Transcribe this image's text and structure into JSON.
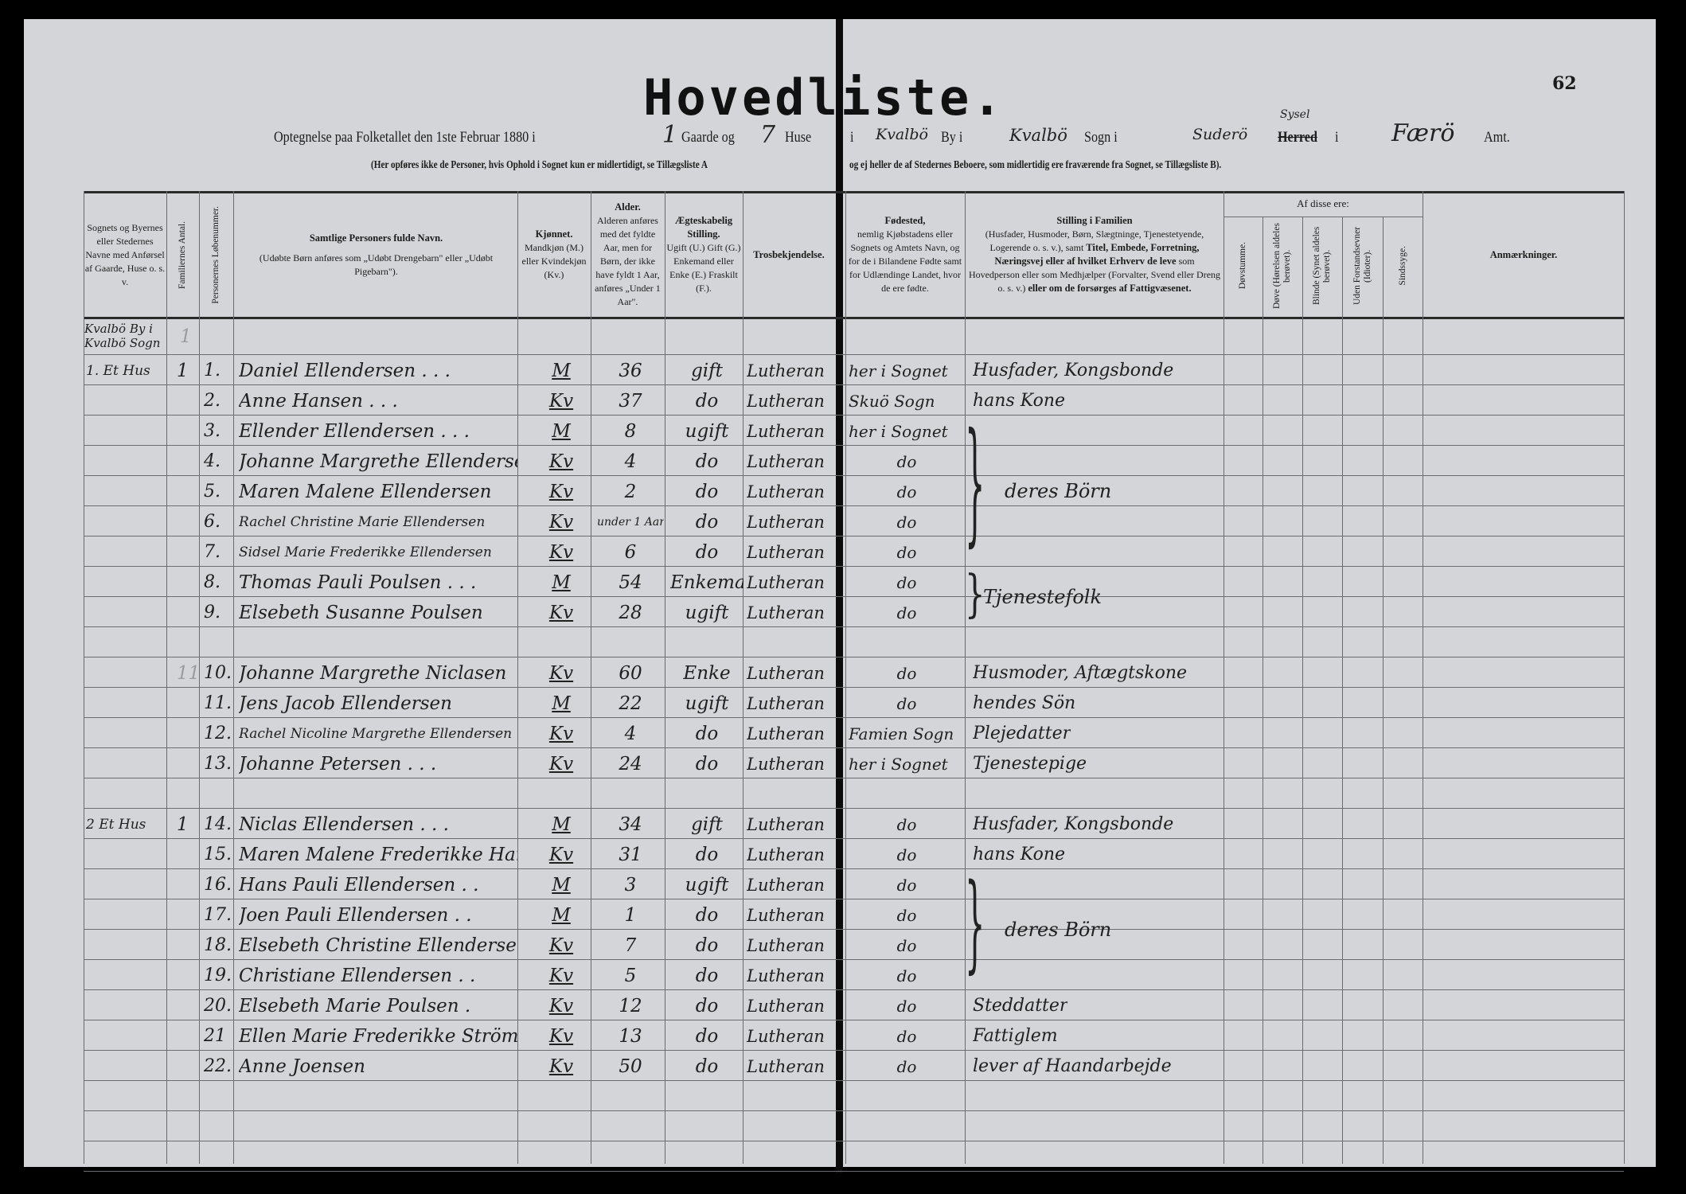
{
  "title": "Hovedliste.",
  "page_number": "62",
  "subtitle": {
    "intro": "Optegnelse paa Folketallet den 1ste Februar 1880 i",
    "gaarde_count": "1",
    "gaarde_label": "Gaarde og",
    "huse_count": "7",
    "huse_label": "Huse",
    "i1": "i",
    "by_name": "Kvalbö",
    "by_label": "By i",
    "sogn_name": "Kvalbö",
    "sogn_label": "Sogn i",
    "herred_name": "Suderö",
    "herred_correction": "Sysel",
    "herred_label": "Herred",
    "i2": "i",
    "amt_name": "Færö",
    "amt_label": "Amt."
  },
  "note_left": "(Her opføres ikke de Personer, hvis Ophold i Sognet kun er midlertidigt, se Tillægsliste A",
  "note_right": "og ej heller de af Stedernes Beboere, som midlertidig ere fraværende fra Sognet, se Tillægsliste B).",
  "headers": {
    "place": "Sognets og Byernes eller Stedernes Navne med Anførsel af Gaarde, Huse o. s. v.",
    "families": "Familiernes Antal.",
    "person_no": "Personernes Løbenummer.",
    "name_title": "Samtlige Personers fulde Navn.",
    "name_note": "(Udøbte Børn anføres som „Udøbt Drengebarn\" eller „Udøbt Pigebarn\").",
    "sex_title": "Kjønnet.",
    "sex_note": "Mandkjøn (M.) eller Kvindekjøn (Kv.)",
    "age_title": "Alder.",
    "age_note": "Alderen anføres med det fyldte Aar, men for Børn, der ikke have fyldt 1 Aar, anføres „Under 1 Aar\".",
    "civil_title": "Ægteskabelig Stilling.",
    "civil_note": "Ugift (U.) Gift (G.) Enkemand eller Enke (E.) Fraskilt (F.).",
    "religion": "Trosbekjendelse.",
    "birth_title": "Fødested,",
    "birth_note": "nemlig Kjøbstadens eller Sognets og Amtets Navn, og for de i Bilandene Fødte samt for Udlændinge Landet, hvor de ere fødte.",
    "position_title": "Stilling i Familien",
    "position_note1": "(Husfader, Husmoder, Børn, Slægtninge, Tjenestetyende, Logerende o. s. v.), samt",
    "position_bold": "Titel, Embede, Forretning, Næringsvej eller af hvilket Erhverv de leve",
    "position_note2": "som Hovedperson eller som Medhjælper (Forvalter, Svend eller Dreng o. s. v.)",
    "position_bold2": "eller om de forsørges af Fattigvæsenet.",
    "of_these": "Af disse ere:",
    "deaf_mute": "Døvstumme.",
    "deaf": "Døve (Hørelsen aldeles berøvet).",
    "blind": "Blinde (Synet aldeles berøvet).",
    "idiots": "Uden Forstandsevner (Idioter).",
    "insane": "Sindssyge.",
    "remarks": "Anmærkninger."
  },
  "location_header": {
    "line1": "Kvalbö By i",
    "line2": "Kvalbö Sogn",
    "families": "1"
  },
  "rows": [
    {
      "place": "1. Et Hus",
      "fam": "1",
      "nr": "1.",
      "name": "Daniel Ellendersen . . .",
      "sex": "M",
      "age": "36",
      "civil": "gift",
      "religion": "Lutheran",
      "birth": "her i Sognet",
      "position": "Husfader, Kongsbonde"
    },
    {
      "nr": "2.",
      "name": "Anne Hansen . . .",
      "sex": "Kv",
      "age": "37",
      "civil": "do",
      "religion": "Lutheran",
      "birth": "Skuö Sogn",
      "position": "hans Kone"
    },
    {
      "nr": "3.",
      "name": "Ellender Ellendersen . . .",
      "sex": "M",
      "age": "8",
      "civil": "ugift",
      "religion": "Lutheran",
      "birth": "her i Sognet"
    },
    {
      "nr": "4.",
      "name": "Johanne Margrethe Ellendersen",
      "sex": "Kv",
      "age": "4",
      "civil": "do",
      "religion": "Lutheran",
      "birth": "do"
    },
    {
      "nr": "5.",
      "name": "Maren Malene Ellendersen",
      "sex": "Kv",
      "age": "2",
      "civil": "do",
      "religion": "Lutheran",
      "birth": "do"
    },
    {
      "nr": "6.",
      "name": "Rachel Christine Marie Ellendersen",
      "sex": "Kv",
      "age": "under 1 Aar",
      "civil": "do",
      "religion": "Lutheran",
      "birth": "do"
    },
    {
      "nr": "7.",
      "name": "Sidsel Marie Frederikke Ellendersen",
      "sex": "Kv",
      "age": "6",
      "civil": "do",
      "religion": "Lutheran",
      "birth": "do"
    },
    {
      "nr": "8.",
      "name": "Thomas Pauli Poulsen . . .",
      "sex": "M",
      "age": "54",
      "civil": "Enkemand",
      "religion": "Lutheran",
      "birth": "do"
    },
    {
      "nr": "9.",
      "name": "Elsebeth Susanne Poulsen",
      "sex": "Kv",
      "age": "28",
      "civil": "ugift",
      "religion": "Lutheran",
      "birth": "do"
    },
    {},
    {
      "fam": "11",
      "nr": "10.",
      "name": "Johanne Margrethe Niclasen",
      "sex": "Kv",
      "age": "60",
      "civil": "Enke",
      "religion": "Lutheran",
      "birth": "do",
      "position": "Husmoder, Aftægtskone"
    },
    {
      "nr": "11.",
      "name": "Jens Jacob Ellendersen",
      "sex": "M",
      "age": "22",
      "civil": "ugift",
      "religion": "Lutheran",
      "birth": "do",
      "position": "hendes Sön"
    },
    {
      "nr": "12.",
      "name": "Rachel Nicoline Margrethe Ellendersen",
      "sex": "Kv",
      "age": "4",
      "civil": "do",
      "religion": "Lutheran",
      "birth": "Famien Sogn",
      "position": "Plejedatter"
    },
    {
      "nr": "13.",
      "name": "Johanne Petersen . . .",
      "sex": "Kv",
      "age": "24",
      "civil": "do",
      "religion": "Lutheran",
      "birth": "her i Sognet",
      "position": "Tjenestepige"
    },
    {},
    {
      "place": "2 Et Hus",
      "fam": "1",
      "nr": "14.",
      "name": "Niclas Ellendersen . . .",
      "sex": "M",
      "age": "34",
      "civil": "gift",
      "religion": "Lutheran",
      "birth": "do",
      "position": "Husfader, Kongsbonde"
    },
    {
      "nr": "15.",
      "name": "Maren Malene Frederikke Hammer",
      "sex": "Kv",
      "age": "31",
      "civil": "do",
      "religion": "Lutheran",
      "birth": "do",
      "position": "hans Kone"
    },
    {
      "nr": "16.",
      "name": "Hans Pauli Ellendersen . .",
      "sex": "M",
      "age": "3",
      "civil": "ugift",
      "religion": "Lutheran",
      "birth": "do"
    },
    {
      "nr": "17.",
      "name": "Joen Pauli Ellendersen . .",
      "sex": "M",
      "age": "1",
      "civil": "do",
      "religion": "Lutheran",
      "birth": "do"
    },
    {
      "nr": "18.",
      "name": "Elsebeth Christine Ellendersen",
      "sex": "Kv",
      "age": "7",
      "civil": "do",
      "religion": "Lutheran",
      "birth": "do"
    },
    {
      "nr": "19.",
      "name": "Christiane Ellendersen . .",
      "sex": "Kv",
      "age": "5",
      "civil": "do",
      "religion": "Lutheran",
      "birth": "do"
    },
    {
      "nr": "20.",
      "name": "Elsebeth Marie Poulsen .",
      "sex": "Kv",
      "age": "12",
      "civil": "do",
      "religion": "Lutheran",
      "birth": "do",
      "position": "Steddatter"
    },
    {
      "nr": "21",
      "name": "Ellen Marie Frederikke Ström",
      "sex": "Kv",
      "age": "13",
      "civil": "do",
      "religion": "Lutheran",
      "birth": "do",
      "position": "Fattiglem"
    },
    {
      "nr": "22.",
      "name": "Anne Joensen",
      "sex": "Kv",
      "age": "50",
      "civil": "do",
      "religion": "Lutheran",
      "birth": "do",
      "position": "lever af Haandarbejde"
    },
    {}
  ],
  "brace_groups": [
    {
      "persons": [
        "3.",
        "7."
      ],
      "label": "deres Börn"
    },
    {
      "persons": [
        "8.",
        "9."
      ],
      "label": "Tjenestefolk"
    },
    {
      "persons": [
        "16.",
        "19."
      ],
      "label": "deres Börn"
    }
  ],
  "colors": {
    "paper": "#d3d5d8",
    "ink": "#202020",
    "border": "#000000"
  }
}
